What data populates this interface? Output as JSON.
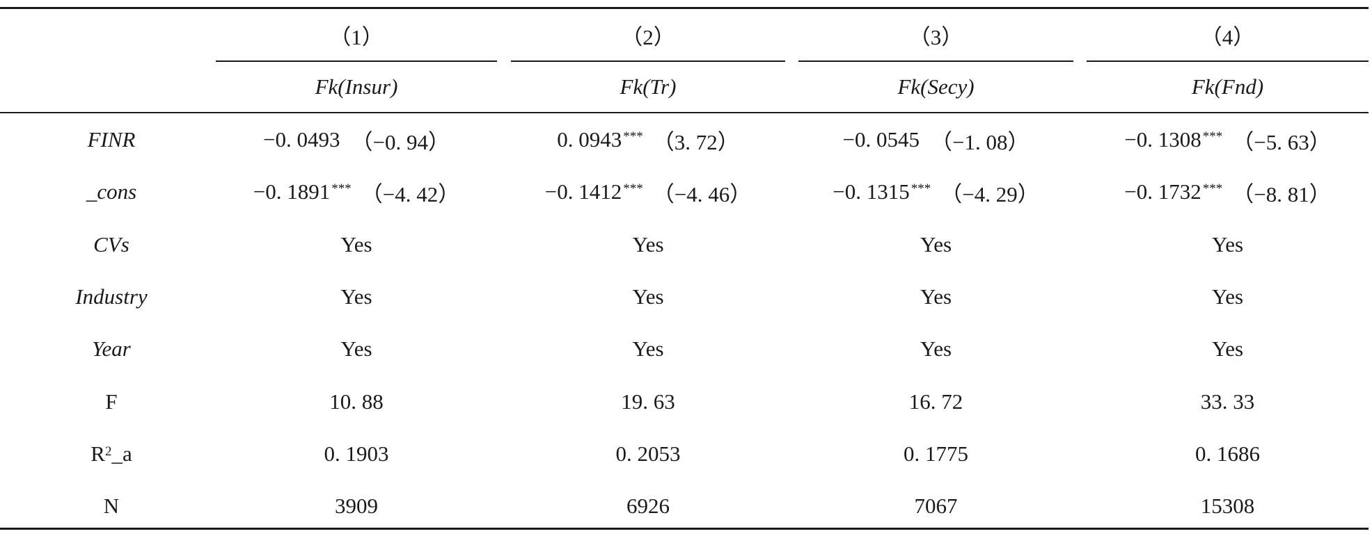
{
  "header": {
    "col_numbers": [
      "（1）",
      "（2）",
      "（3）",
      "（4）"
    ],
    "col_vars": [
      "Fk(Insur)",
      "Fk(Tr)",
      "Fk(Secy)",
      "Fk(Fnd)"
    ]
  },
  "rows": [
    {
      "label": "FINR",
      "italic": true,
      "cells": [
        {
          "coef": "−0. 0493",
          "stars": "",
          "t": "（−0. 94）"
        },
        {
          "coef": "0. 0943",
          "stars": "***",
          "t": "（3. 72）"
        },
        {
          "coef": "−0. 0545",
          "stars": "",
          "t": "（−1. 08）"
        },
        {
          "coef": "−0. 1308",
          "stars": "***",
          "t": "（−5. 63）"
        }
      ]
    },
    {
      "label": "_cons",
      "italic": true,
      "cells": [
        {
          "coef": "−0. 1891",
          "stars": "***",
          "t": "（−4. 42）"
        },
        {
          "coef": "−0. 1412",
          "stars": "***",
          "t": "（−4. 46）"
        },
        {
          "coef": "−0. 1315",
          "stars": "***",
          "t": "（−4. 29）"
        },
        {
          "coef": "−0. 1732",
          "stars": "***",
          "t": "（−8. 81）"
        }
      ]
    },
    {
      "label": "CVs",
      "italic": true,
      "values": [
        "Yes",
        "Yes",
        "Yes",
        "Yes"
      ]
    },
    {
      "label": "Industry",
      "italic": true,
      "values": [
        "Yes",
        "Yes",
        "Yes",
        "Yes"
      ]
    },
    {
      "label": "Year",
      "italic": true,
      "values": [
        "Yes",
        "Yes",
        "Yes",
        "Yes"
      ]
    },
    {
      "label": "F",
      "italic": false,
      "values": [
        "10. 88",
        "19. 63",
        "16. 72",
        "33. 33"
      ]
    },
    {
      "label_main": "R",
      "label_sup": "2",
      "label_tail": "_a",
      "italic": false,
      "values": [
        "0. 1903",
        "0. 2053",
        "0. 1775",
        "0. 1686"
      ]
    },
    {
      "label": "N",
      "italic": false,
      "values": [
        "3909",
        "6926",
        "7067",
        "15308"
      ]
    }
  ]
}
